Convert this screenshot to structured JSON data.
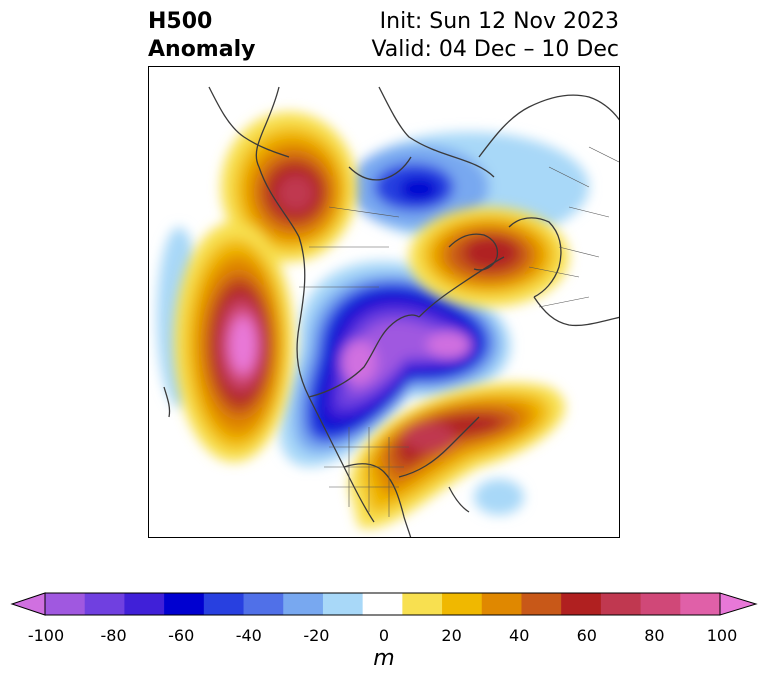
{
  "header": {
    "title_line1": "H500",
    "title_line2": "Anomaly",
    "init_text": "Init: Sun 12 Nov 2023",
    "valid_text": "Valid: 04 Dec – 10 Dec"
  },
  "colorbar": {
    "unit": "m",
    "ticks": [
      "-100",
      "-80",
      "-60",
      "-40",
      "-20",
      "0",
      "20",
      "40",
      "60",
      "80",
      "100"
    ],
    "colors": [
      "#d070e0",
      "#a058e0",
      "#7040e0",
      "#4020d8",
      "#0000d0",
      "#2840e0",
      "#5070e8",
      "#78a8f0",
      "#a8d8f8",
      "#ffffff",
      "#f8e050",
      "#f0b800",
      "#e08800",
      "#c85818",
      "#b02020",
      "#c03850",
      "#d04878",
      "#e060a8",
      "#e878d8"
    ]
  }
}
